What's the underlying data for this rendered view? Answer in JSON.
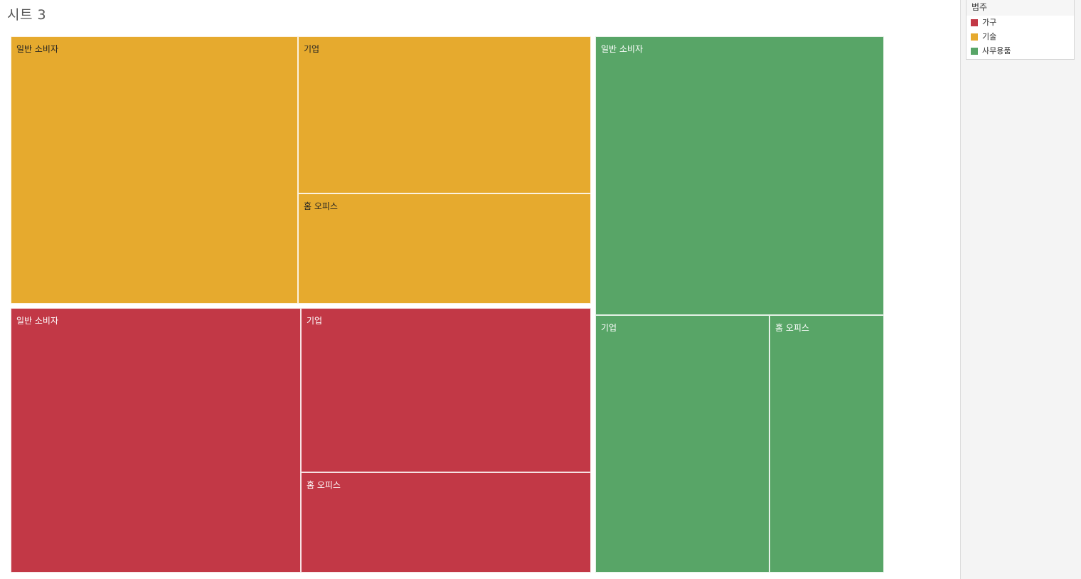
{
  "sheet": {
    "title": "시트 3"
  },
  "legend": {
    "title": "범주",
    "items": [
      {
        "label": "가구",
        "color": "#c23846"
      },
      {
        "label": "기술",
        "color": "#e6aa2e"
      },
      {
        "label": "사무용품",
        "color": "#58a567"
      }
    ]
  },
  "chart_data": {
    "type": "treemap",
    "title": "시트 3",
    "color_by": "범주",
    "size_by": "",
    "groups": [
      {
        "category": "기술",
        "color": "#e6aa2e",
        "label_color": "#222222",
        "segments": [
          {
            "name": "일반 소비자",
            "value": 50
          },
          {
            "name": "기업",
            "value": 30
          },
          {
            "name": "홈 오피스",
            "value": 21
          }
        ]
      },
      {
        "category": "가구",
        "color": "#c23846",
        "label_color": "#ffffff",
        "segments": [
          {
            "name": "일반 소비자",
            "value": 50
          },
          {
            "name": "기업",
            "value": 31
          },
          {
            "name": "홈 오피스",
            "value": 19
          }
        ]
      },
      {
        "category": "사무용품",
        "color": "#58a567",
        "label_color": "#ffffff",
        "segments": [
          {
            "name": "일반 소비자",
            "value": 52
          },
          {
            "name": "기업",
            "value": 29
          },
          {
            "name": "홈 오피스",
            "value": 19
          }
        ]
      }
    ]
  }
}
